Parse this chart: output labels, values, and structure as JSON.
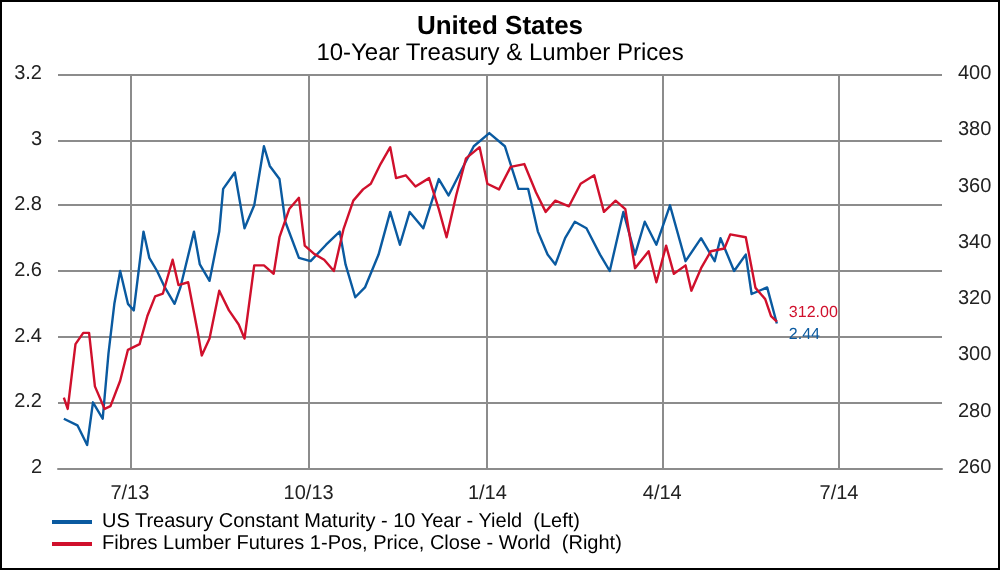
{
  "chart_data": {
    "type": "line",
    "title": "United States",
    "subtitle": "10-Year Treasury & Lumber Prices",
    "xlim": [
      "2013-05-25",
      "2014-08-23"
    ],
    "xticks": [
      {
        "value": "2013-07-01",
        "label": "7/13"
      },
      {
        "value": "2013-10-01",
        "label": "10/13"
      },
      {
        "value": "2014-01-01",
        "label": "1/14"
      },
      {
        "value": "2014-04-01",
        "label": "4/14"
      },
      {
        "value": "2014-07-01",
        "label": "7/14"
      }
    ],
    "ylim": [
      2,
      3.2
    ],
    "yticks": [
      2,
      2.2,
      2.4,
      2.6,
      2.8,
      3,
      3.2
    ],
    "y2lim": [
      260,
      400
    ],
    "y2ticks": [
      260,
      280,
      300,
      320,
      340,
      360,
      380,
      400
    ],
    "grid": true,
    "legend": "bottom left",
    "marker": "none",
    "line_style": "solid",
    "series": [
      {
        "name": "US Treasury Constant Maturity - 10 Year - Yield  (Left)",
        "color": "#0a5aa0",
        "x": [
          "2013-05-28",
          "2013-06-04",
          "2013-06-09",
          "2013-06-12",
          "2013-06-17",
          "2013-06-20",
          "2013-06-23",
          "2013-06-26",
          "2013-06-30",
          "2013-07-03",
          "2013-07-08",
          "2013-07-11",
          "2013-07-15",
          "2013-07-19",
          "2013-07-24",
          "2013-07-27",
          "2013-08-03",
          "2013-08-06",
          "2013-08-11",
          "2013-08-16",
          "2013-08-18",
          "2013-08-24",
          "2013-08-29",
          "2013-09-03",
          "2013-09-08",
          "2013-09-11",
          "2013-09-16",
          "2013-09-19",
          "2013-09-26",
          "2013-10-02",
          "2013-10-10",
          "2013-10-17",
          "2013-10-20",
          "2013-10-25",
          "2013-10-30",
          "2013-11-06",
          "2013-11-12",
          "2013-11-17",
          "2013-11-22",
          "2013-11-29",
          "2013-12-07",
          "2013-12-12",
          "2013-12-18",
          "2013-12-25",
          "2014-01-02",
          "2014-01-10",
          "2014-01-17",
          "2014-01-22",
          "2014-01-27",
          "2014-02-01",
          "2014-02-05",
          "2014-02-10",
          "2014-02-15",
          "2014-02-21",
          "2014-02-28",
          "2014-03-05",
          "2014-03-12",
          "2014-03-18",
          "2014-03-23",
          "2014-03-29",
          "2014-04-05",
          "2014-04-13",
          "2014-04-21",
          "2014-04-28",
          "2014-05-01",
          "2014-05-08",
          "2014-05-14",
          "2014-05-17",
          "2014-05-25",
          "2014-05-30"
        ],
        "values": [
          2.15,
          2.13,
          2.07,
          2.2,
          2.15,
          2.35,
          2.5,
          2.6,
          2.5,
          2.48,
          2.72,
          2.64,
          2.6,
          2.55,
          2.5,
          2.55,
          2.72,
          2.62,
          2.57,
          2.72,
          2.85,
          2.9,
          2.73,
          2.8,
          2.98,
          2.92,
          2.88,
          2.75,
          2.64,
          2.63,
          2.68,
          2.72,
          2.62,
          2.52,
          2.55,
          2.65,
          2.78,
          2.68,
          2.78,
          2.73,
          2.88,
          2.83,
          2.9,
          2.98,
          3.02,
          2.98,
          2.85,
          2.85,
          2.72,
          2.65,
          2.62,
          2.7,
          2.75,
          2.73,
          2.65,
          2.6,
          2.78,
          2.65,
          2.75,
          2.68,
          2.8,
          2.63,
          2.7,
          2.63,
          2.7,
          2.6,
          2.65,
          2.53,
          2.55,
          2.44
        ],
        "value_labels": [
          null,
          null,
          null,
          null,
          null,
          null,
          null,
          null,
          null,
          null,
          null,
          null,
          null,
          null,
          null,
          null,
          null,
          null,
          null,
          null,
          null,
          null,
          null,
          null,
          null,
          null,
          null,
          null,
          null,
          null,
          null,
          null,
          null,
          null,
          null,
          null,
          null,
          null,
          null,
          null,
          null,
          null,
          null,
          null,
          null,
          null,
          null,
          null,
          null,
          null,
          null,
          null,
          null,
          null,
          null,
          null,
          null,
          null,
          null,
          null,
          null,
          null,
          null,
          null,
          null,
          null,
          null,
          null,
          null,
          "2.44"
        ]
      },
      {
        "name": "Fibres Lumber Futures 1-Pos, Price, Close - World  (Right)",
        "color": "#d0102c",
        "axis": "y2",
        "x": [
          "2013-05-28",
          "2013-05-30",
          "2013-06-03",
          "2013-06-07",
          "2013-06-10",
          "2013-06-13",
          "2013-06-18",
          "2013-06-21",
          "2013-06-26",
          "2013-06-30",
          "2013-07-06",
          "2013-07-10",
          "2013-07-14",
          "2013-07-18",
          "2013-07-23",
          "2013-07-26",
          "2013-07-31",
          "2013-08-05",
          "2013-08-07",
          "2013-08-11",
          "2013-08-16",
          "2013-08-21",
          "2013-08-26",
          "2013-08-29",
          "2013-09-03",
          "2013-09-08",
          "2013-09-13",
          "2013-09-16",
          "2013-09-21",
          "2013-09-26",
          "2013-09-29",
          "2013-10-04",
          "2013-10-09",
          "2013-10-14",
          "2013-10-19",
          "2013-10-24",
          "2013-10-29",
          "2013-11-02",
          "2013-11-07",
          "2013-11-12",
          "2013-11-15",
          "2013-11-20",
          "2013-11-25",
          "2013-12-02",
          "2013-12-07",
          "2013-12-11",
          "2013-12-16",
          "2013-12-21",
          "2013-12-28",
          "2014-01-01",
          "2014-01-07",
          "2014-01-13",
          "2014-01-20",
          "2014-01-26",
          "2014-01-31",
          "2014-02-05",
          "2014-02-12",
          "2014-02-18",
          "2014-02-25",
          "2014-03-02",
          "2014-03-08",
          "2014-03-13",
          "2014-03-18",
          "2014-03-25",
          "2014-03-29",
          "2014-04-03",
          "2014-04-07",
          "2014-04-13",
          "2014-04-16",
          "2014-04-21",
          "2014-04-26",
          "2014-05-03",
          "2014-05-06",
          "2014-05-14",
          "2014-05-19",
          "2014-05-24",
          "2014-05-27",
          "2014-05-30"
        ],
        "values": [
          285,
          281,
          304,
          308,
          308,
          289,
          281,
          282,
          291,
          302,
          304,
          314,
          321,
          322,
          334,
          325,
          326,
          308,
          300,
          306,
          323,
          316,
          311,
          306,
          332,
          332,
          329,
          342,
          352,
          356,
          339,
          336,
          334,
          330,
          345,
          355,
          359,
          361,
          368,
          374,
          363,
          364,
          360,
          363,
          352,
          342,
          357,
          370,
          374,
          361,
          359,
          367,
          368,
          358,
          351,
          355,
          353,
          361,
          364,
          351,
          355,
          352,
          331,
          337,
          326,
          339,
          329,
          332,
          323,
          331,
          337,
          338,
          343,
          342,
          324,
          320,
          314,
          312
        ],
        "value_labels": [
          null,
          null,
          null,
          null,
          null,
          null,
          null,
          null,
          null,
          null,
          null,
          null,
          null,
          null,
          null,
          null,
          null,
          null,
          null,
          null,
          null,
          null,
          null,
          null,
          null,
          null,
          null,
          null,
          null,
          null,
          null,
          null,
          null,
          null,
          null,
          null,
          null,
          null,
          null,
          null,
          null,
          null,
          null,
          null,
          null,
          null,
          null,
          null,
          null,
          null,
          null,
          null,
          null,
          null,
          null,
          null,
          null,
          null,
          null,
          null,
          null,
          null,
          null,
          null,
          null,
          null,
          null,
          null,
          null,
          null,
          null,
          null,
          null,
          null,
          null,
          null,
          null,
          "312.00"
        ]
      }
    ]
  }
}
